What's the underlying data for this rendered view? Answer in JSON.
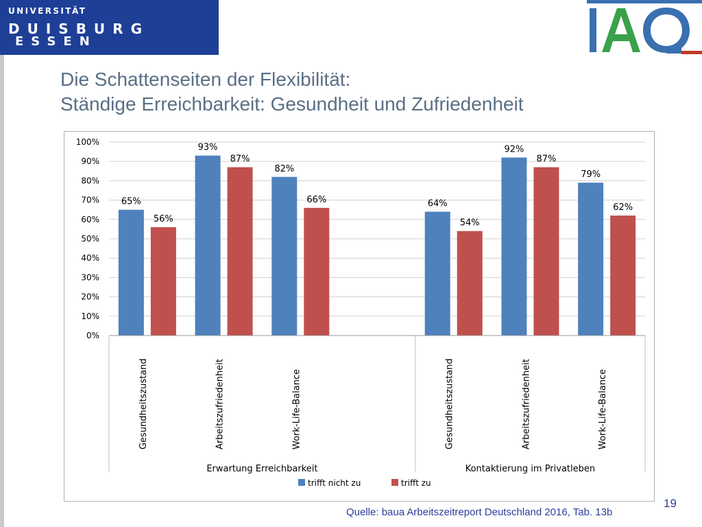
{
  "logo": {
    "line1": "UNIVERSITÄT",
    "line2": "DUISBURG",
    "line3": "ESSEN",
    "brand_color": "#1e3f96"
  },
  "iaq_logo": {
    "text": "IAQ",
    "colors": {
      "I": "#3a6fb0",
      "A": "#3aa14a",
      "Q": "#3a6fb0",
      "underline": "#c0392b"
    }
  },
  "title": {
    "line1": "Die Schattenseiten der Flexibilität:",
    "line2": "Ständige Erreichbarkeit: Gesundheit und Zufriedenheit"
  },
  "chart_data": {
    "type": "bar",
    "title": "",
    "xlabel": "",
    "ylabel": "",
    "ylim": [
      0,
      100
    ],
    "y_ticks": [
      "0%",
      "10%",
      "20%",
      "30%",
      "40%",
      "50%",
      "60%",
      "70%",
      "80%",
      "90%",
      "100%"
    ],
    "grid": true,
    "legend_position": "bottom",
    "groups": [
      {
        "label": "Erwartung Erreichbarkeit",
        "categories": [
          "Gesundheitszustand",
          "Arbeitszufriedenheit",
          "Work-Life-Balance"
        ]
      },
      {
        "label": "Kontaktierung im Privatleben",
        "categories": [
          "Gesundheitszustand",
          "Arbeitszufriedenheit",
          "Work-Life-Balance"
        ]
      }
    ],
    "series": [
      {
        "name": "trifft nicht zu",
        "color": "#4f81bd",
        "values": [
          65,
          93,
          82,
          64,
          92,
          79
        ],
        "labels": [
          "65%",
          "93%",
          "82%",
          "64%",
          "92%",
          "79%"
        ]
      },
      {
        "name": "trifft zu",
        "color": "#c0504d",
        "values": [
          56,
          87,
          66,
          54,
          87,
          62
        ],
        "labels": [
          "56%",
          "87%",
          "66%",
          "54%",
          "87%",
          "62%"
        ]
      }
    ]
  },
  "footer": {
    "source": "Quelle: baua Arbeitszeitreport Deutschland 2016, Tab. 13b",
    "page_number": "19"
  }
}
